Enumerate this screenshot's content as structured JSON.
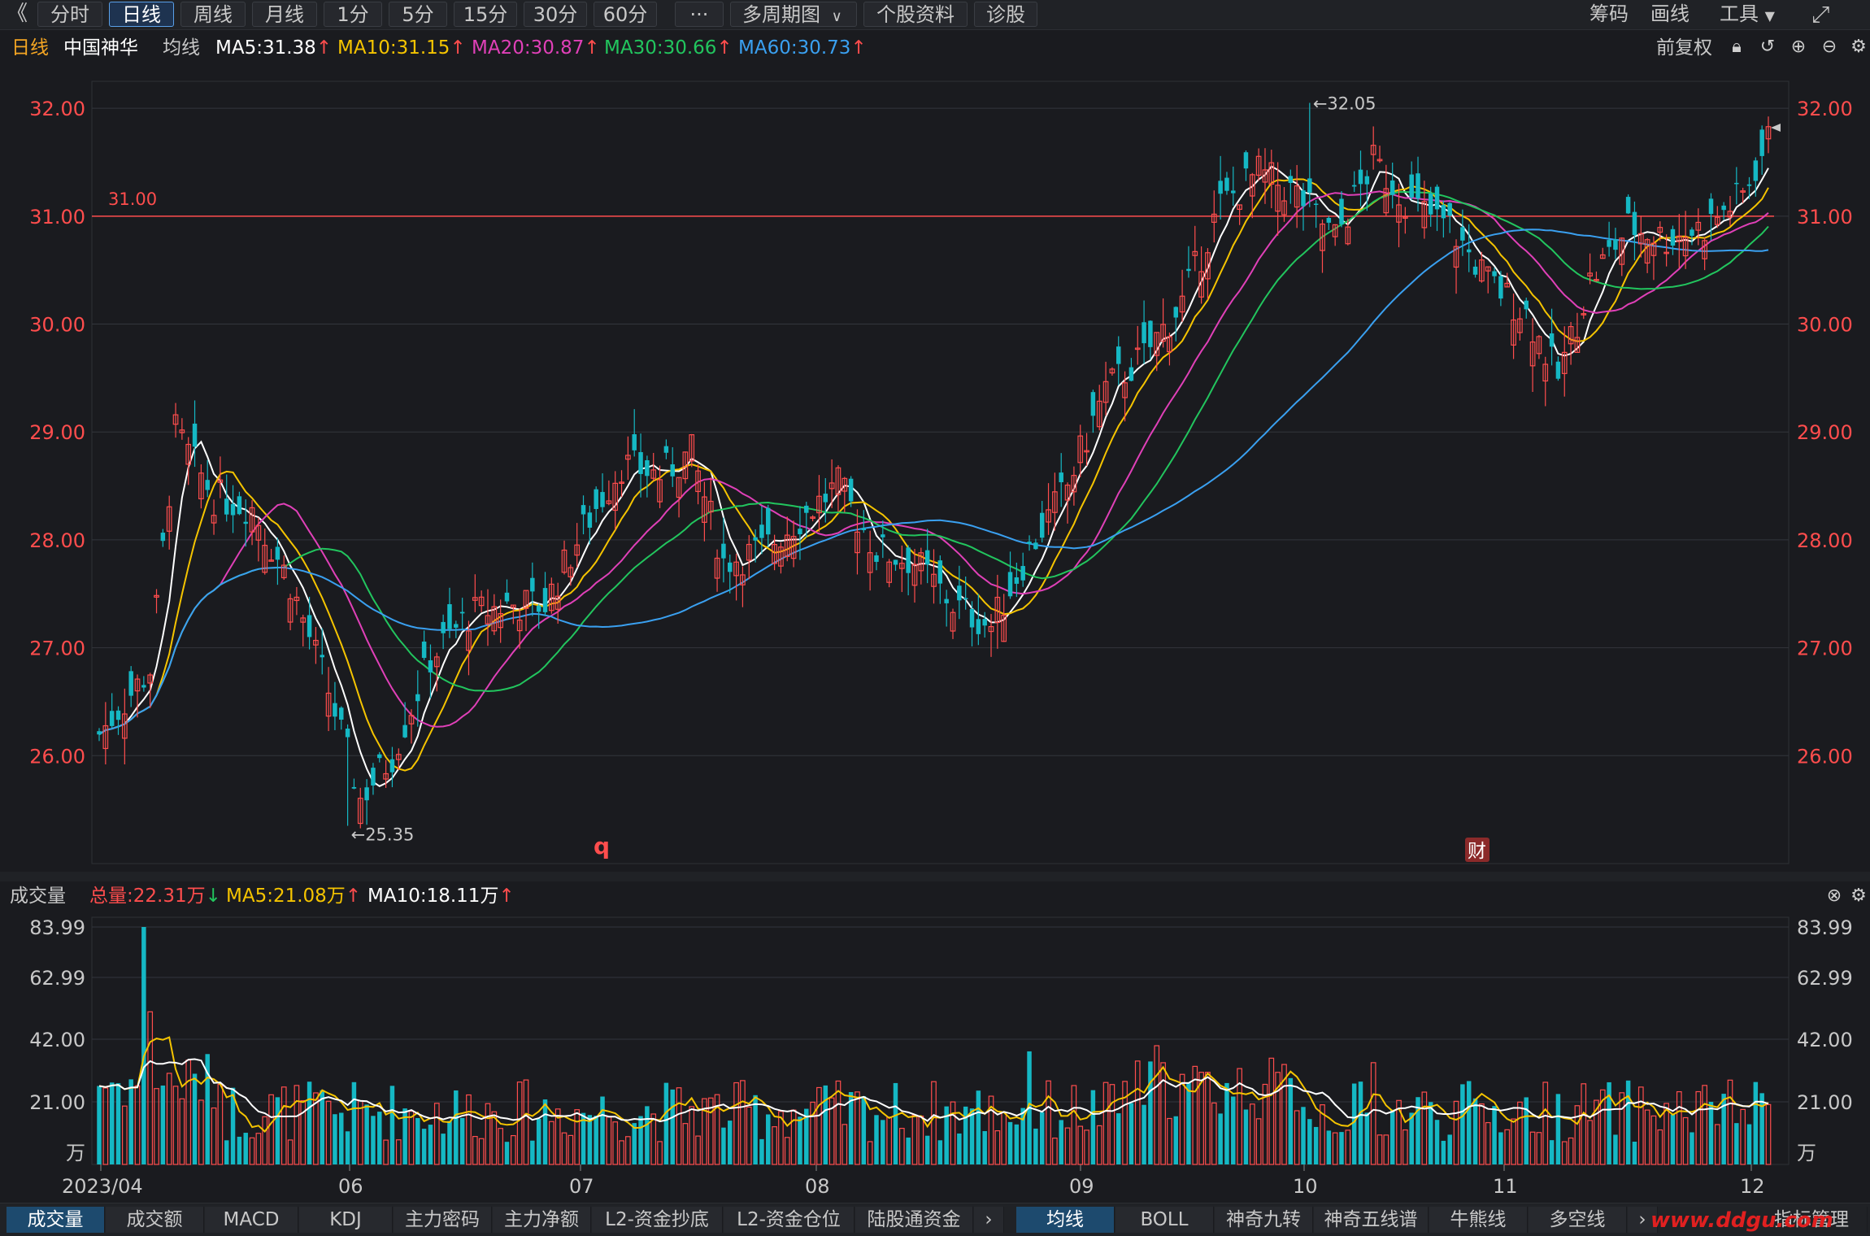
{
  "toolbar": {
    "back": "《",
    "buttons": [
      "分时",
      "日线",
      "周线",
      "月线",
      "1分",
      "5分",
      "15分",
      "30分",
      "60分",
      "···",
      "多周期图",
      "个股资料",
      "诊股"
    ],
    "active": "日线",
    "multi_period_chevron": "chevron-down-icon",
    "right": [
      "筹码",
      "画线",
      "工具"
    ],
    "fullscreen_icon": "fullscreen-icon"
  },
  "legend": {
    "period": "日线",
    "stock_name": "中国神华",
    "ma_label": "均线",
    "ma": [
      {
        "label": "MA5:31.38",
        "color": "#ffffff"
      },
      {
        "label": "MA10:31.15",
        "color": "#f5c400"
      },
      {
        "label": "MA20:30.87",
        "color": "#e040b8"
      },
      {
        "label": "MA30:30.66",
        "color": "#22c55e"
      },
      {
        "label": "MA60:30.73",
        "color": "#3aa0f0"
      }
    ],
    "adjust": "前复权",
    "arrow": "↑"
  },
  "chart_data": {
    "type": "candlestick",
    "y_axis": [
      "32.00",
      "31.00",
      "30.00",
      "29.00",
      "28.00",
      "27.00",
      "26.00"
    ],
    "ylim": [
      25.0,
      32.25
    ],
    "x_labels": [
      "2023/04",
      "06",
      "07",
      "08",
      "09",
      "10",
      "11",
      "12"
    ],
    "ref_line": {
      "value": 31.0,
      "label": "31.00"
    },
    "high_marker": {
      "value": 32.05,
      "label": "←32.05"
    },
    "low_marker": {
      "value": 25.35,
      "label": "←25.35"
    },
    "event_marks": [
      {
        "label": "q"
      },
      {
        "label": "财"
      }
    ],
    "colors": {
      "up": "#ff4d4d",
      "down": "#15b8c4",
      "bg": "#1a1b1f",
      "grid": "#33363c"
    }
  },
  "volume": {
    "title": "成交量",
    "total": "总量:22.31万",
    "total_arrow": "↓",
    "ma5": "MA5:21.08万",
    "ma10": "MA10:18.11万",
    "ma_arrow": "↑",
    "y_axis": [
      "83.99",
      "62.99",
      "42.00",
      "21.00",
      "万"
    ]
  },
  "bottom_tabs_left": [
    "成交量",
    "成交额",
    "MACD",
    "KDJ",
    "主力密码",
    "主力净额",
    "L2-资金抄底",
    "L2-资金仓位",
    "陆股通资金"
  ],
  "bottom_tabs_left_active": "成交量",
  "bottom_tabs_right": [
    "均线",
    "BOLL",
    "神奇九转",
    "神奇五线谱",
    "牛熊线",
    "多空线"
  ],
  "bottom_tabs_right_active": "均线",
  "indicator_manage": "指标管理",
  "watermark": "www.ddgu.com"
}
